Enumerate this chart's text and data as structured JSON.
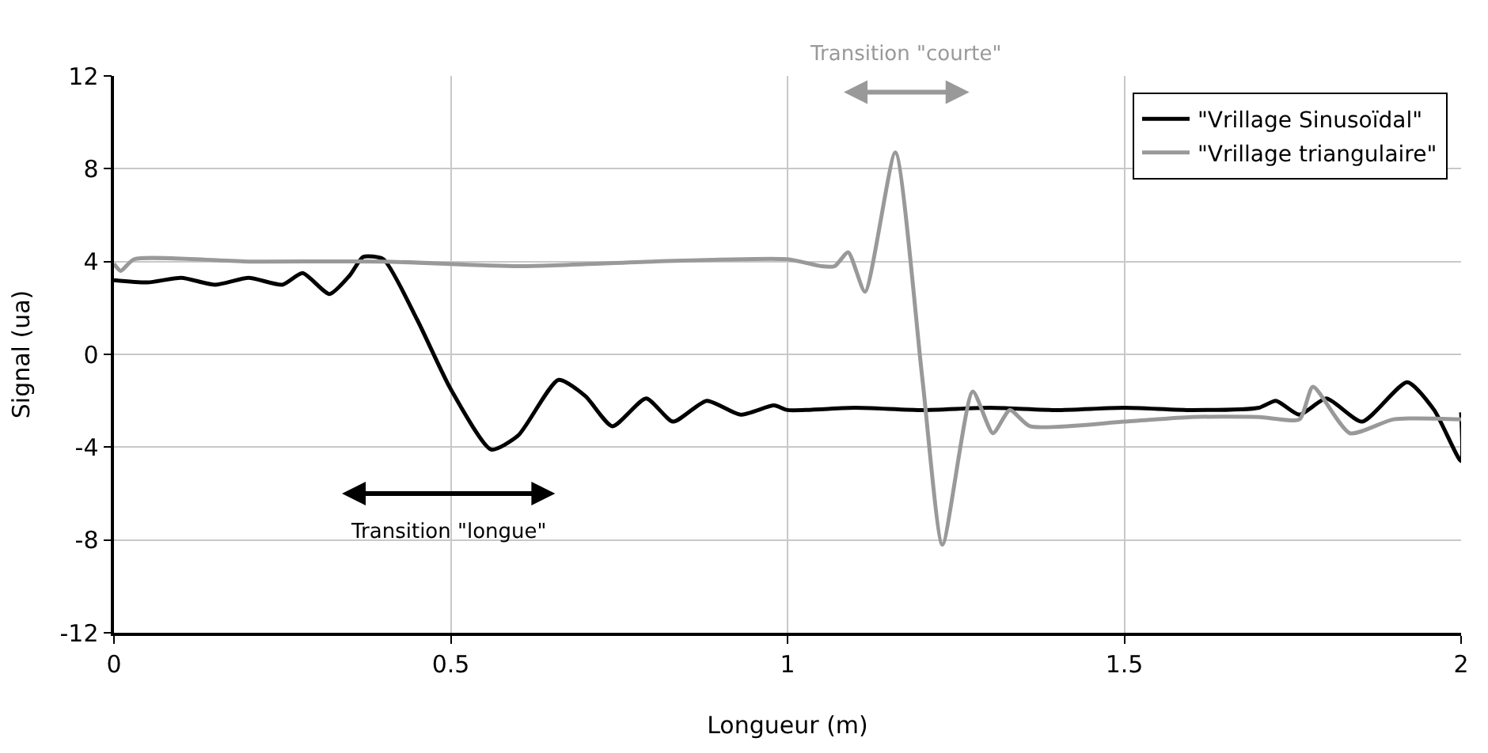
{
  "chart_data": {
    "type": "line",
    "xlabel": "Longueur (m)",
    "ylabel": "Signal (ua)",
    "xlim": [
      0,
      2
    ],
    "xticks": [
      {
        "value": 0,
        "label": "0"
      },
      {
        "value": 0.5,
        "label": "0.5"
      },
      {
        "value": 1,
        "label": "1"
      },
      {
        "value": 1.5,
        "label": "1.5"
      },
      {
        "value": 2,
        "label": "2"
      }
    ],
    "ylim": [
      -12,
      12
    ],
    "yticks": [
      -12,
      -8,
      -4,
      0,
      4,
      8,
      12
    ],
    "grid": true,
    "legend": "top right",
    "line_style": "solid",
    "marker": "none",
    "series": [
      {
        "name": "\"Vrillage Sinusoïdal\"",
        "color": "#000000",
        "x": [
          0,
          0.05,
          0.1,
          0.15,
          0.2,
          0.25,
          0.28,
          0.32,
          0.35,
          0.37,
          0.4,
          0.45,
          0.5,
          0.56,
          0.6,
          0.66,
          0.7,
          0.74,
          0.79,
          0.83,
          0.88,
          0.93,
          0.98,
          1.0,
          1.1,
          1.2,
          1.3,
          1.4,
          1.5,
          1.6,
          1.7,
          1.725,
          1.76,
          1.8,
          1.853,
          1.92,
          1.96,
          2.0,
          2.0
        ],
        "values": [
          3.2,
          3.1,
          3.3,
          3.0,
          3.3,
          3.0,
          3.5,
          2.6,
          3.4,
          4.2,
          4.1,
          1.5,
          -1.5,
          -4.1,
          -3.5,
          -1.1,
          -1.8,
          -3.1,
          -1.9,
          -2.9,
          -2.0,
          -2.6,
          -2.2,
          -2.4,
          -2.3,
          -2.4,
          -2.3,
          -2.4,
          -2.3,
          -2.4,
          -2.3,
          -2.0,
          -2.6,
          -1.9,
          -2.9,
          -1.2,
          -2.4,
          -4.6,
          -2.5
        ]
      },
      {
        "name": "\"Vrillage triangulaire\"",
        "color": "#999999",
        "x": [
          0,
          0.01,
          0.03,
          0.2,
          0.4,
          0.6,
          0.8,
          1.0,
          1.05,
          1.07,
          1.09,
          1.115,
          1.16,
          1.2,
          1.23,
          1.275,
          1.305,
          1.33,
          1.36,
          1.5,
          1.6,
          1.7,
          1.76,
          1.78,
          1.835,
          1.9,
          2.0
        ],
        "values": [
          3.9,
          3.6,
          4.1,
          4.0,
          4.0,
          3.8,
          4.0,
          4.1,
          3.8,
          3.8,
          4.4,
          2.7,
          8.7,
          -1.0,
          -8.2,
          -1.6,
          -3.4,
          -2.4,
          -3.1,
          -2.9,
          -2.7,
          -2.7,
          -2.8,
          -1.4,
          -3.4,
          -2.8,
          -2.8
        ]
      }
    ],
    "annotations": [
      "Transition \"courte\"",
      "Transition \"longue\""
    ]
  }
}
